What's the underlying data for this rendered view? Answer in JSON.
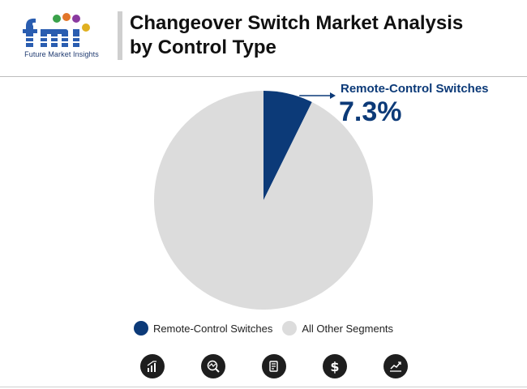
{
  "header": {
    "title": "Changeover Switch Market Analysis by Control Type",
    "logo_text": "fmi",
    "logo_tagline": "Future Market Insights"
  },
  "chart_data": {
    "type": "pie",
    "title": "Changeover Switch Market Analysis by Control Type",
    "slices": [
      {
        "label": "Remote-Control Switches",
        "value": 7.3,
        "color": "#0c3a78"
      },
      {
        "label": "All Other Segments",
        "value": 92.7,
        "color": "#dcdcdc"
      }
    ],
    "annotations": [
      {
        "slice": "Remote-Control Switches",
        "label": "Remote-Control Switches",
        "value_text": "7.3%"
      }
    ],
    "legend_position": "bottom"
  },
  "legend": [
    {
      "label": "Remote-Control Switches",
      "color": "#0c3a78"
    },
    {
      "label": "All Other Segments",
      "color": "#dcdcdc"
    }
  ],
  "footer_icons": [
    "bar-chart-icon",
    "magnifier-chart-icon",
    "report-document-icon",
    "dollar-icon",
    "trend-chart-icon"
  ],
  "colors": {
    "accent": "#0c3a78",
    "other": "#dcdcdc",
    "title": "#111111"
  }
}
